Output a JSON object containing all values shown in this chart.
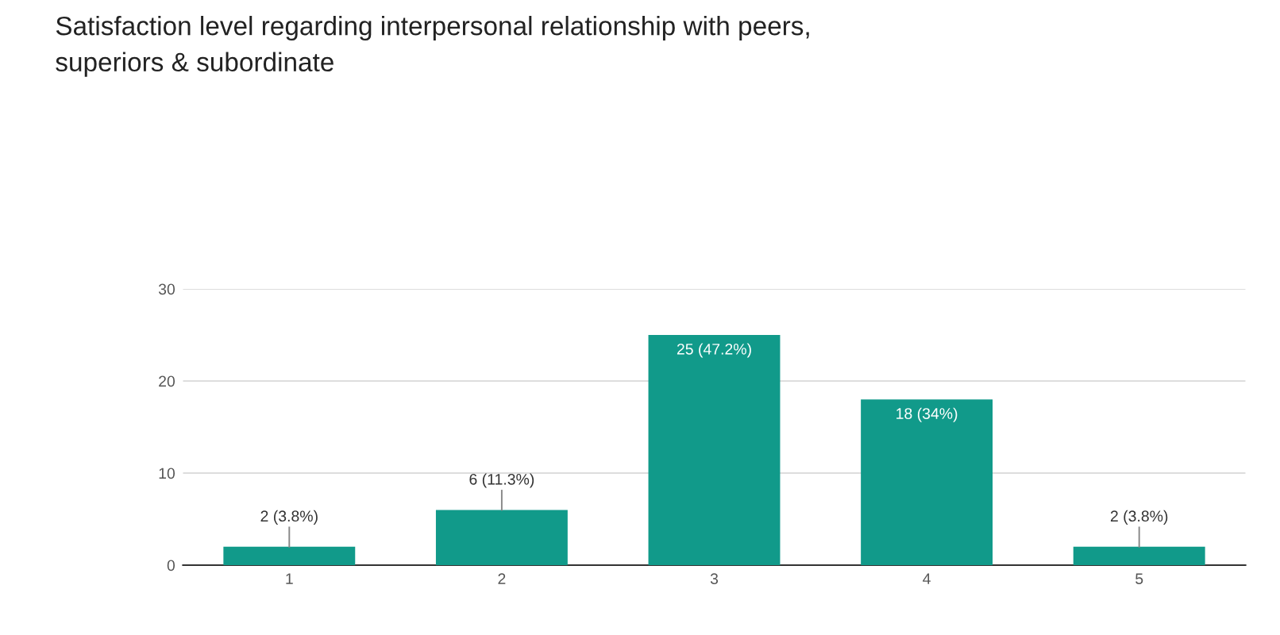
{
  "chart_data": {
    "type": "bar",
    "title": "Satisfaction level regarding interpersonal relationship with peers,\nsuperiors & subordinate",
    "categories": [
      "1",
      "2",
      "3",
      "4",
      "5"
    ],
    "values": [
      2,
      6,
      25,
      18,
      2
    ],
    "value_labels": [
      "2 (3.8%)",
      "6 (11.3%)",
      "25 (47.2%)",
      "18 (34%)",
      "2 (3.8%)"
    ],
    "color": "#119a8a",
    "ylim": [
      0,
      30
    ],
    "yticks": [
      0,
      10,
      20,
      30
    ],
    "grid": "y",
    "legend": false
  }
}
